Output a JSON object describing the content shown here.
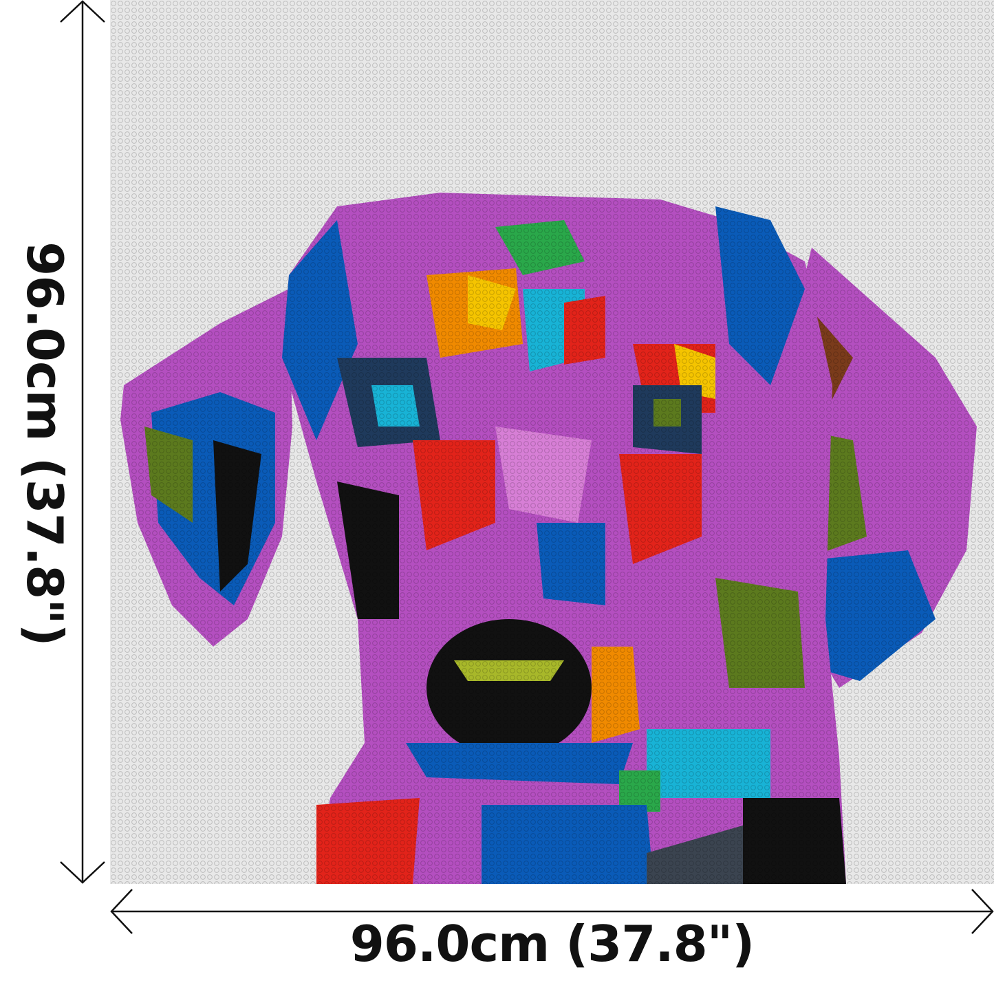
{
  "dimensions": {
    "width_label": "96.0cm (37.8\")",
    "height_label": "96.0cm (37.8\")"
  },
  "mosaic": {
    "subject": "dog-portrait",
    "background_color": "#e6e6e6",
    "palette": [
      "#b44fc0",
      "#d77fd6",
      "#0a5bb8",
      "#1f3a5c",
      "#111111",
      "#e2231a",
      "#f08a00",
      "#f5c400",
      "#5c7a1e",
      "#18b3d6",
      "#7a3b1b",
      "#8e5aa8"
    ]
  }
}
